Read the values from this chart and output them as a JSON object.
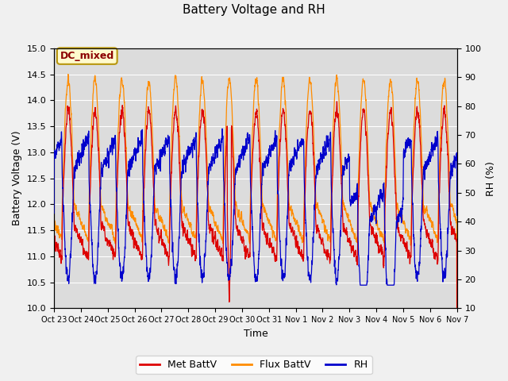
{
  "title": "Battery Voltage and RH",
  "xlabel": "Time",
  "ylabel_left": "Battery Voltage (V)",
  "ylabel_right": "RH (%)",
  "ylim_left": [
    10.0,
    15.0
  ],
  "ylim_right": [
    10,
    100
  ],
  "yticks_left": [
    10.0,
    10.5,
    11.0,
    11.5,
    12.0,
    12.5,
    13.0,
    13.5,
    14.0,
    14.5,
    15.0
  ],
  "yticks_right": [
    10,
    20,
    30,
    40,
    50,
    60,
    70,
    80,
    90,
    100
  ],
  "label_annotation": "DC_mixed",
  "annotation_color": "#8B0000",
  "annotation_bg": "#FFFACD",
  "annotation_border": "#B8960C",
  "colors": {
    "met_battv": "#DD0000",
    "flux_battv": "#FF8C00",
    "rh": "#0000CC"
  },
  "legend_labels": [
    "Met BattV",
    "Flux BattV",
    "RH"
  ],
  "plot_bg": "#DCDCDC",
  "grid_color": "#FFFFFF",
  "fig_bg": "#F0F0F0",
  "title_fontsize": 11,
  "axis_label_fontsize": 9,
  "tick_fontsize": 8,
  "legend_fontsize": 9,
  "xtick_labels": [
    "Oct 23",
    "Oct 24",
    "Oct 25",
    "Oct 26",
    "Oct 27",
    "Oct 28",
    "Oct 29",
    "Oct 30",
    "Oct 31",
    "Nov 1",
    "Nov 2",
    "Nov 3",
    "Nov 4",
    "Nov 5",
    "Nov 6",
    "Nov 7"
  ]
}
